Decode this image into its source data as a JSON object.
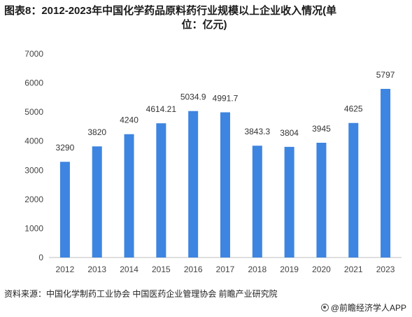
{
  "title": {
    "line1": "图表8：2012-2023年中国化学药品原料药行业规模以上企业收入情况(单",
    "line2": "位：亿元)"
  },
  "chart_data": {
    "type": "bar",
    "categories": [
      "2012",
      "2013",
      "2014",
      "2015",
      "2016",
      "2017",
      "2018",
      "2019",
      "2020",
      "2021",
      "2023"
    ],
    "values": [
      3290,
      3820,
      4240,
      4614.21,
      5034.9,
      4991.7,
      3843.3,
      3804,
      3945,
      4625,
      5797
    ],
    "data_labels": [
      "3290",
      "3820",
      "4240",
      "4614.21",
      "5034.9",
      "4991.7",
      "3843.3",
      "3804",
      "3945",
      "4625",
      "5797"
    ],
    "yticks": [
      0,
      1000,
      2000,
      3000,
      4000,
      5000,
      6000,
      7000
    ],
    "ylim": [
      0,
      7000
    ],
    "grid": false,
    "bar_color": "#3d85e0",
    "xlabel": "",
    "ylabel": ""
  },
  "source": "资料来源：中国化学制药工业协会 中国医药企业管理协会 前瞻产业研究院",
  "credit": "@前瞻经济学人APP"
}
